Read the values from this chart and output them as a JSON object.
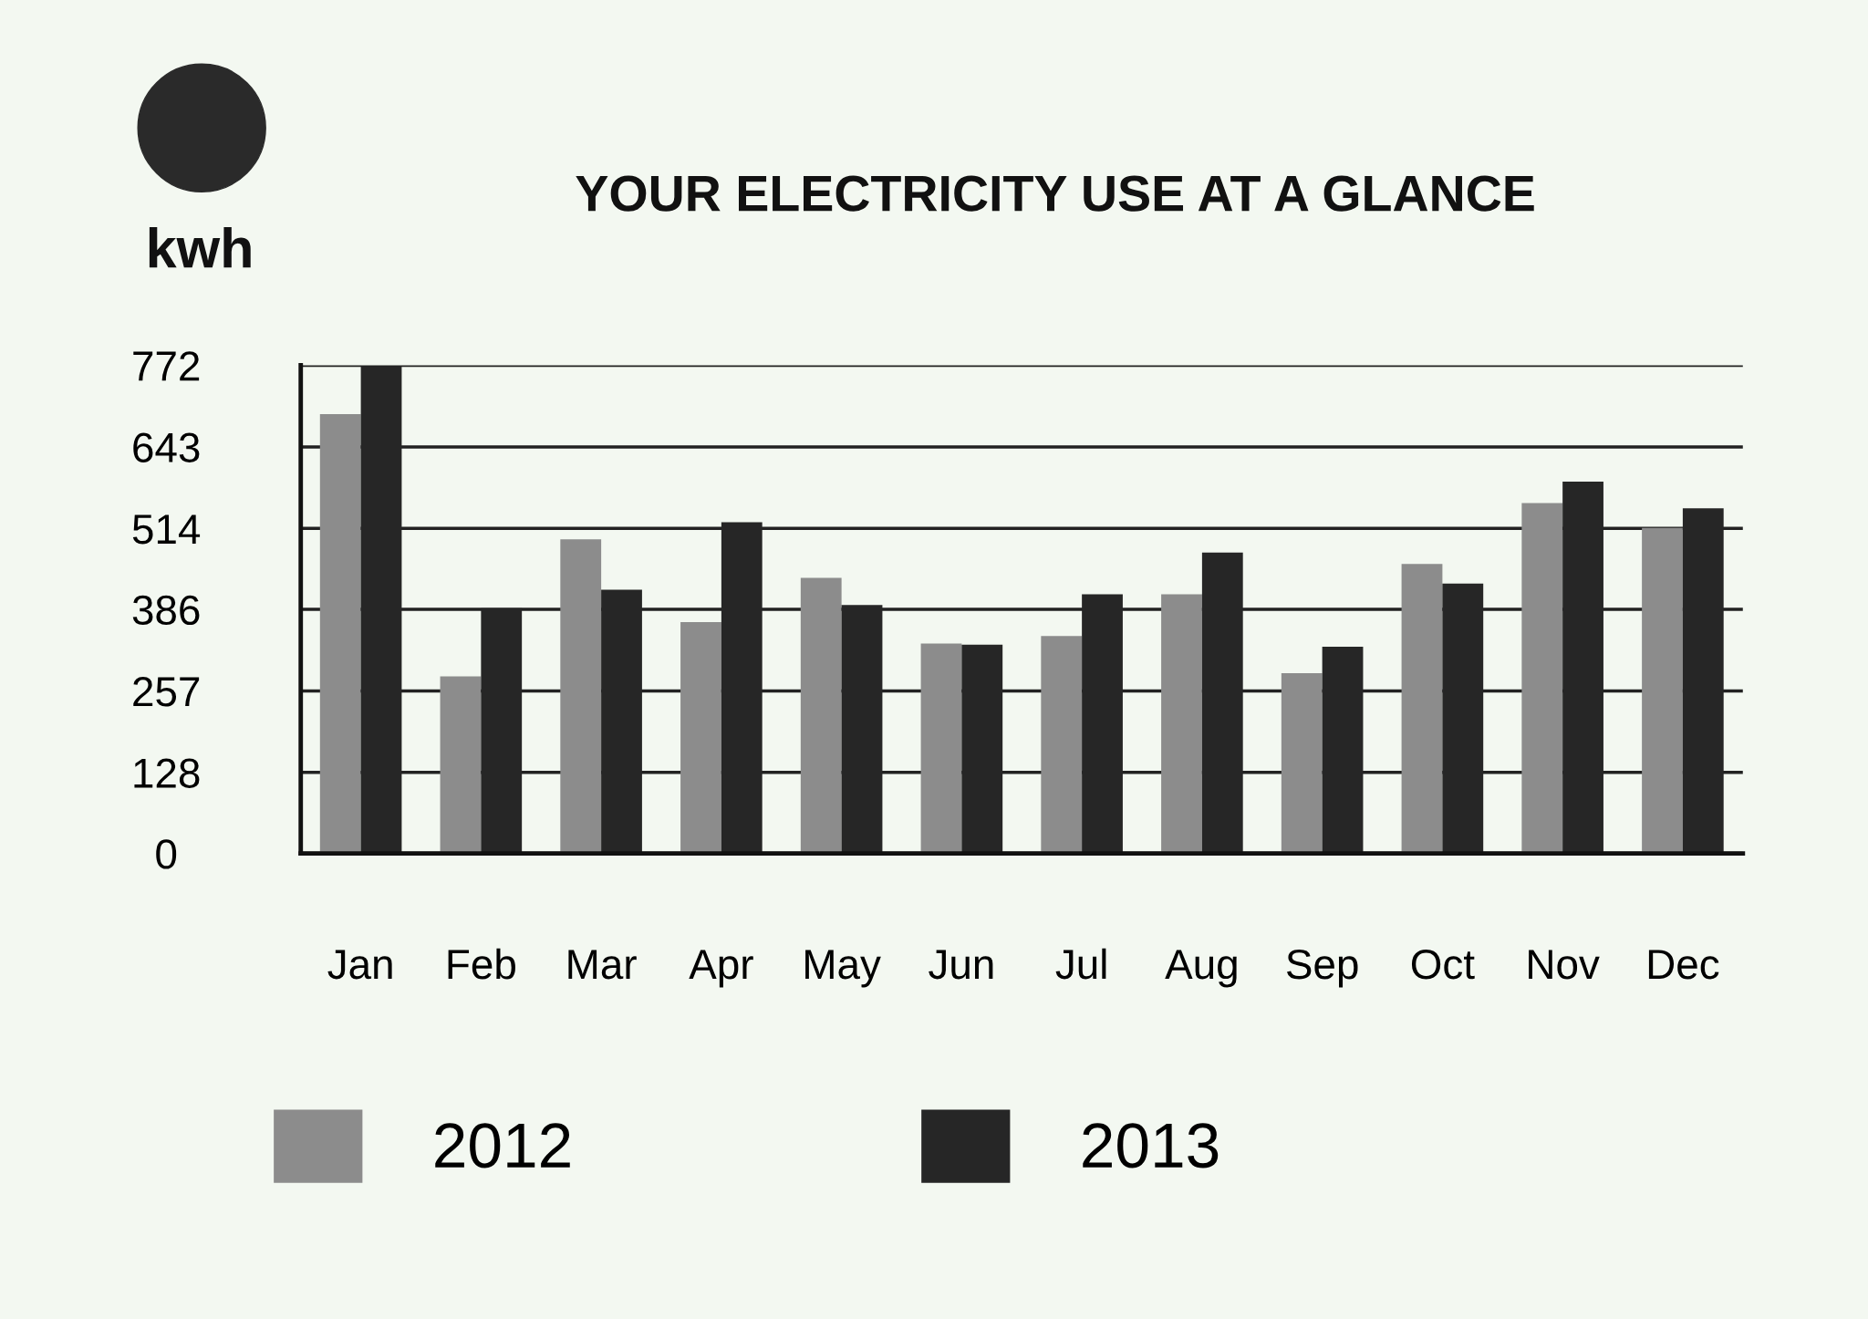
{
  "chart_data": {
    "type": "bar",
    "title": "YOUR ELECTRICITY USE AT A GLANCE",
    "ylabel": "kwh",
    "categories": [
      "Jan",
      "Feb",
      "Mar",
      "Apr",
      "May",
      "Jun",
      "Jul",
      "Aug",
      "Sep",
      "Oct",
      "Nov",
      "Dec"
    ],
    "series": [
      {
        "name": "2012",
        "color": "#8c8c8c",
        "values": [
          695,
          280,
          497,
          366,
          436,
          332,
          344,
          410,
          285,
          458,
          554,
          515
        ]
      },
      {
        "name": "2013",
        "color": "#262626",
        "values": [
          770,
          388,
          417,
          524,
          393,
          330,
          410,
          476,
          327,
          427,
          588,
          546
        ]
      }
    ],
    "ylim": [
      0,
      772
    ],
    "yticks": [
      0,
      128,
      257,
      386,
      514,
      643,
      772
    ],
    "grid": "y",
    "legend": "bottom"
  }
}
